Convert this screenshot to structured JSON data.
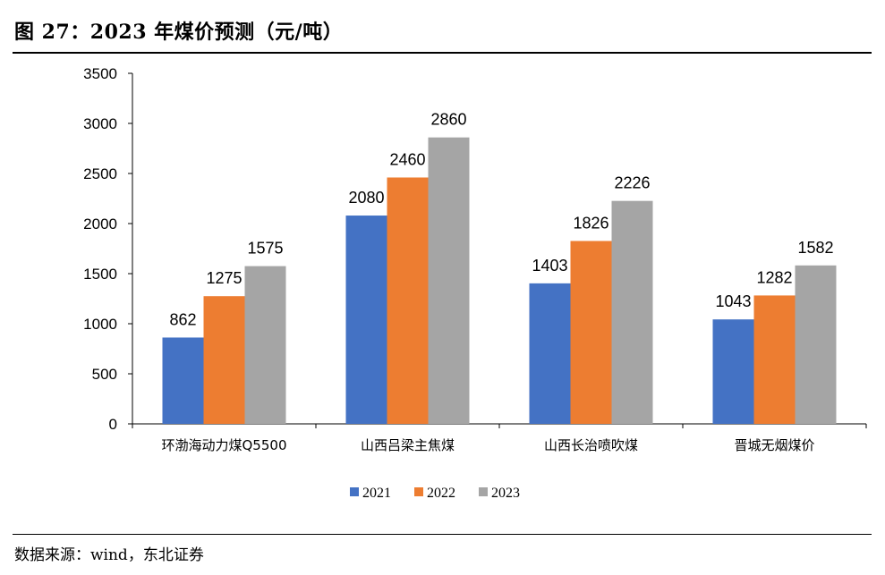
{
  "figure": {
    "title": "图 27：2023 年煤价预测（元/吨）",
    "source": "数据来源：wind，东北证券"
  },
  "chart_data": {
    "type": "bar",
    "categories": [
      "环渤海动力煤Q5500",
      "山西吕梁主焦煤",
      "山西长治喷吹煤",
      "晋城无烟煤价"
    ],
    "series": [
      {
        "name": "2021",
        "values": [
          862,
          2080,
          1403,
          1043
        ],
        "color": "#4472C4"
      },
      {
        "name": "2022",
        "values": [
          1275,
          2460,
          1826,
          1282
        ],
        "color": "#ED7D31"
      },
      {
        "name": "2023",
        "values": [
          1575,
          2860,
          2226,
          1582
        ],
        "color": "#A5A5A5"
      }
    ],
    "ylim": [
      0,
      3500
    ],
    "yticks": [
      0,
      500,
      1000,
      1500,
      2000,
      2500,
      3000,
      3500
    ],
    "grid": false,
    "legend": "bottom-center",
    "data_labels": true
  }
}
